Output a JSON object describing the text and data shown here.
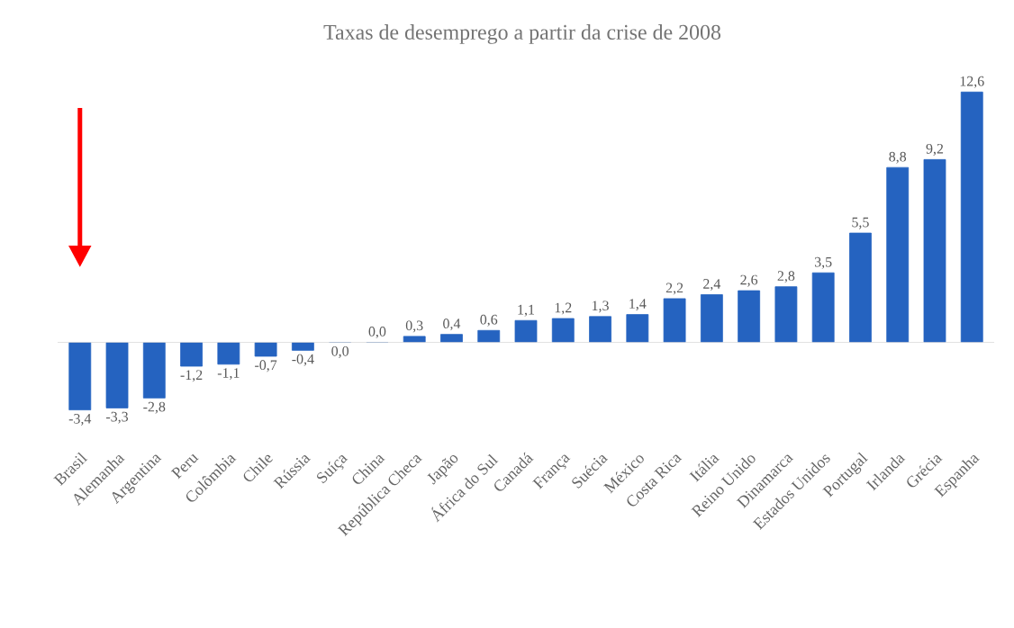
{
  "chart_data": {
    "type": "bar",
    "title": "Taxas de desemprego a partir da crise de 2008",
    "categories": [
      "Brasil",
      "Alemanha",
      "Argentina",
      "Peru",
      "Colômbia",
      "Chile",
      "Rússia",
      "Suíça",
      "China",
      "República Checa",
      "Japão",
      "África do Sul",
      "Canadá",
      "França",
      "Suécia",
      "México",
      "Costa Rica",
      "Itália",
      "Reino Unido",
      "Dinamarca",
      "Estados Unidos",
      "Portugal",
      "Irlanda",
      "Grécia",
      "Espanha"
    ],
    "values": [
      -3.4,
      -3.3,
      -2.8,
      -1.2,
      -1.1,
      -0.7,
      -0.4,
      0.0,
      0.0,
      0.3,
      0.4,
      0.6,
      1.1,
      1.2,
      1.3,
      1.4,
      2.2,
      2.4,
      2.6,
      2.8,
      3.5,
      5.5,
      8.8,
      9.2,
      12.6
    ],
    "value_labels": [
      "-3,4",
      "-3,3",
      "-2,8",
      "-1,2",
      "-1,1",
      "-0,7",
      "-0,4",
      "0,0",
      "0,0",
      "0,3",
      "0,4",
      "0,6",
      "1,1",
      "1,2",
      "1,3",
      "1,4",
      "2,2",
      "2,4",
      "2,6",
      "2,8",
      "3,5",
      "5,5",
      "8,8",
      "9,2",
      "12,6"
    ],
    "color": "#2563c0"
  }
}
